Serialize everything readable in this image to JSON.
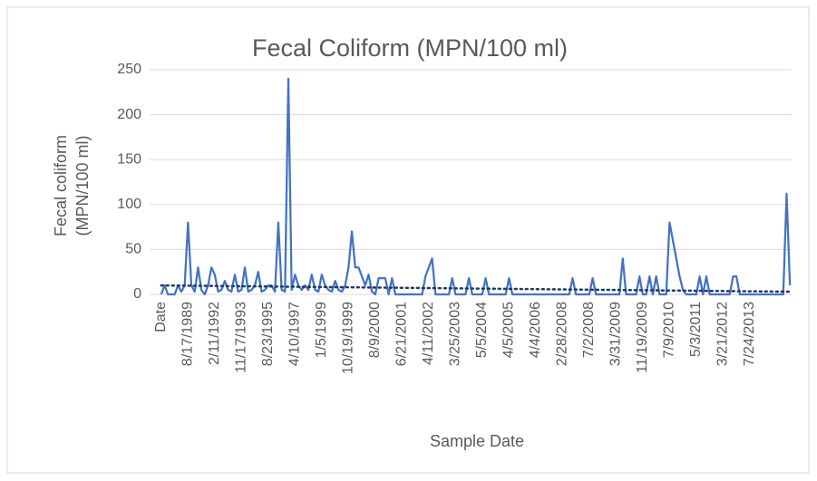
{
  "chart_data": {
    "type": "line",
    "title": "Fecal Coliform (MPN/100 ml)",
    "xlabel": "Sample Date",
    "ylabel": [
      "Fecal coliform",
      "(MPN/100 ml)"
    ],
    "categories": [
      "Date",
      null,
      null,
      null,
      null,
      null,
      null,
      null,
      "8/17/1989",
      null,
      null,
      null,
      null,
      null,
      null,
      null,
      "2/11/1992",
      null,
      null,
      null,
      null,
      null,
      null,
      null,
      "11/17/1993",
      null,
      null,
      null,
      null,
      null,
      null,
      null,
      "8/23/1995",
      null,
      null,
      null,
      null,
      null,
      null,
      null,
      "4/10/1997",
      null,
      null,
      null,
      null,
      null,
      null,
      null,
      "1/5/1999",
      null,
      null,
      null,
      null,
      null,
      null,
      null,
      "10/19/1999",
      null,
      null,
      null,
      null,
      null,
      null,
      null,
      "8/9/2000",
      null,
      null,
      null,
      null,
      null,
      null,
      null,
      "6/21/2001",
      null,
      null,
      null,
      null,
      null,
      null,
      null,
      "4/11/2002",
      null,
      null,
      null,
      null,
      null,
      null,
      null,
      "3/25/2003",
      null,
      null,
      null,
      null,
      null,
      null,
      null,
      "5/5/2004",
      null,
      null,
      null,
      null,
      null,
      null,
      null,
      "4/5/2005",
      null,
      null,
      null,
      null,
      null,
      null,
      null,
      "4/4/2006",
      null,
      null,
      null,
      null,
      null,
      null,
      null,
      "2/28/2008",
      null,
      null,
      null,
      null,
      null,
      null,
      null,
      "7/2/2008",
      null,
      null,
      null,
      null,
      null,
      null,
      null,
      "3/31/2009",
      null,
      null,
      null,
      null,
      null,
      null,
      null,
      "11/19/2009",
      null,
      null,
      null,
      null,
      null,
      null,
      null,
      "7/9/2010",
      null,
      null,
      null,
      null,
      null,
      null,
      null,
      "5/3/2011",
      null,
      null,
      null,
      null,
      null,
      null,
      null,
      "3/21/2012",
      null,
      null,
      null,
      null,
      null,
      null,
      null,
      "7/24/2013",
      null,
      null,
      null,
      null,
      null,
      null,
      null,
      null,
      null,
      null,
      null,
      null
    ],
    "values": [
      0,
      10,
      0,
      0,
      0,
      10,
      3,
      10,
      80,
      10,
      3,
      30,
      5,
      0,
      10,
      30,
      22,
      3,
      5,
      15,
      5,
      3,
      22,
      3,
      5,
      30,
      3,
      5,
      10,
      25,
      3,
      5,
      10,
      10,
      3,
      80,
      5,
      3,
      240,
      5,
      22,
      10,
      5,
      10,
      5,
      22,
      5,
      3,
      22,
      10,
      5,
      3,
      15,
      5,
      3,
      10,
      30,
      70,
      30,
      30,
      20,
      10,
      22,
      3,
      0,
      18,
      18,
      18,
      0,
      18,
      0,
      0,
      0,
      0,
      0,
      0,
      0,
      0,
      0,
      20,
      30,
      40,
      0,
      0,
      0,
      0,
      0,
      18,
      0,
      0,
      0,
      0,
      18,
      0,
      0,
      0,
      0,
      18,
      0,
      0,
      0,
      0,
      0,
      0,
      18,
      0,
      0,
      0,
      0,
      0,
      0,
      0,
      0,
      0,
      0,
      0,
      0,
      0,
      0,
      0,
      0,
      0,
      0,
      18,
      0,
      0,
      0,
      0,
      0,
      18,
      0,
      0,
      0,
      0,
      0,
      0,
      0,
      0,
      40,
      0,
      0,
      0,
      0,
      20,
      0,
      0,
      20,
      0,
      20,
      0,
      0,
      0,
      80,
      60,
      40,
      20,
      5,
      0,
      0,
      0,
      0,
      20,
      0,
      20,
      0,
      0,
      0,
      0,
      0,
      0,
      0,
      20,
      20,
      0,
      0,
      0,
      0,
      0,
      0,
      0,
      0,
      0,
      0,
      0,
      0,
      0,
      0,
      112,
      10
    ],
    "color": "#4472c4",
    "trendline": {
      "values": [
        10,
        3
      ],
      "color": "#1f3864"
    },
    "ylim": [
      0,
      250
    ],
    "yticks": [
      0,
      50,
      100,
      150,
      200,
      250
    ],
    "grid": true
  }
}
